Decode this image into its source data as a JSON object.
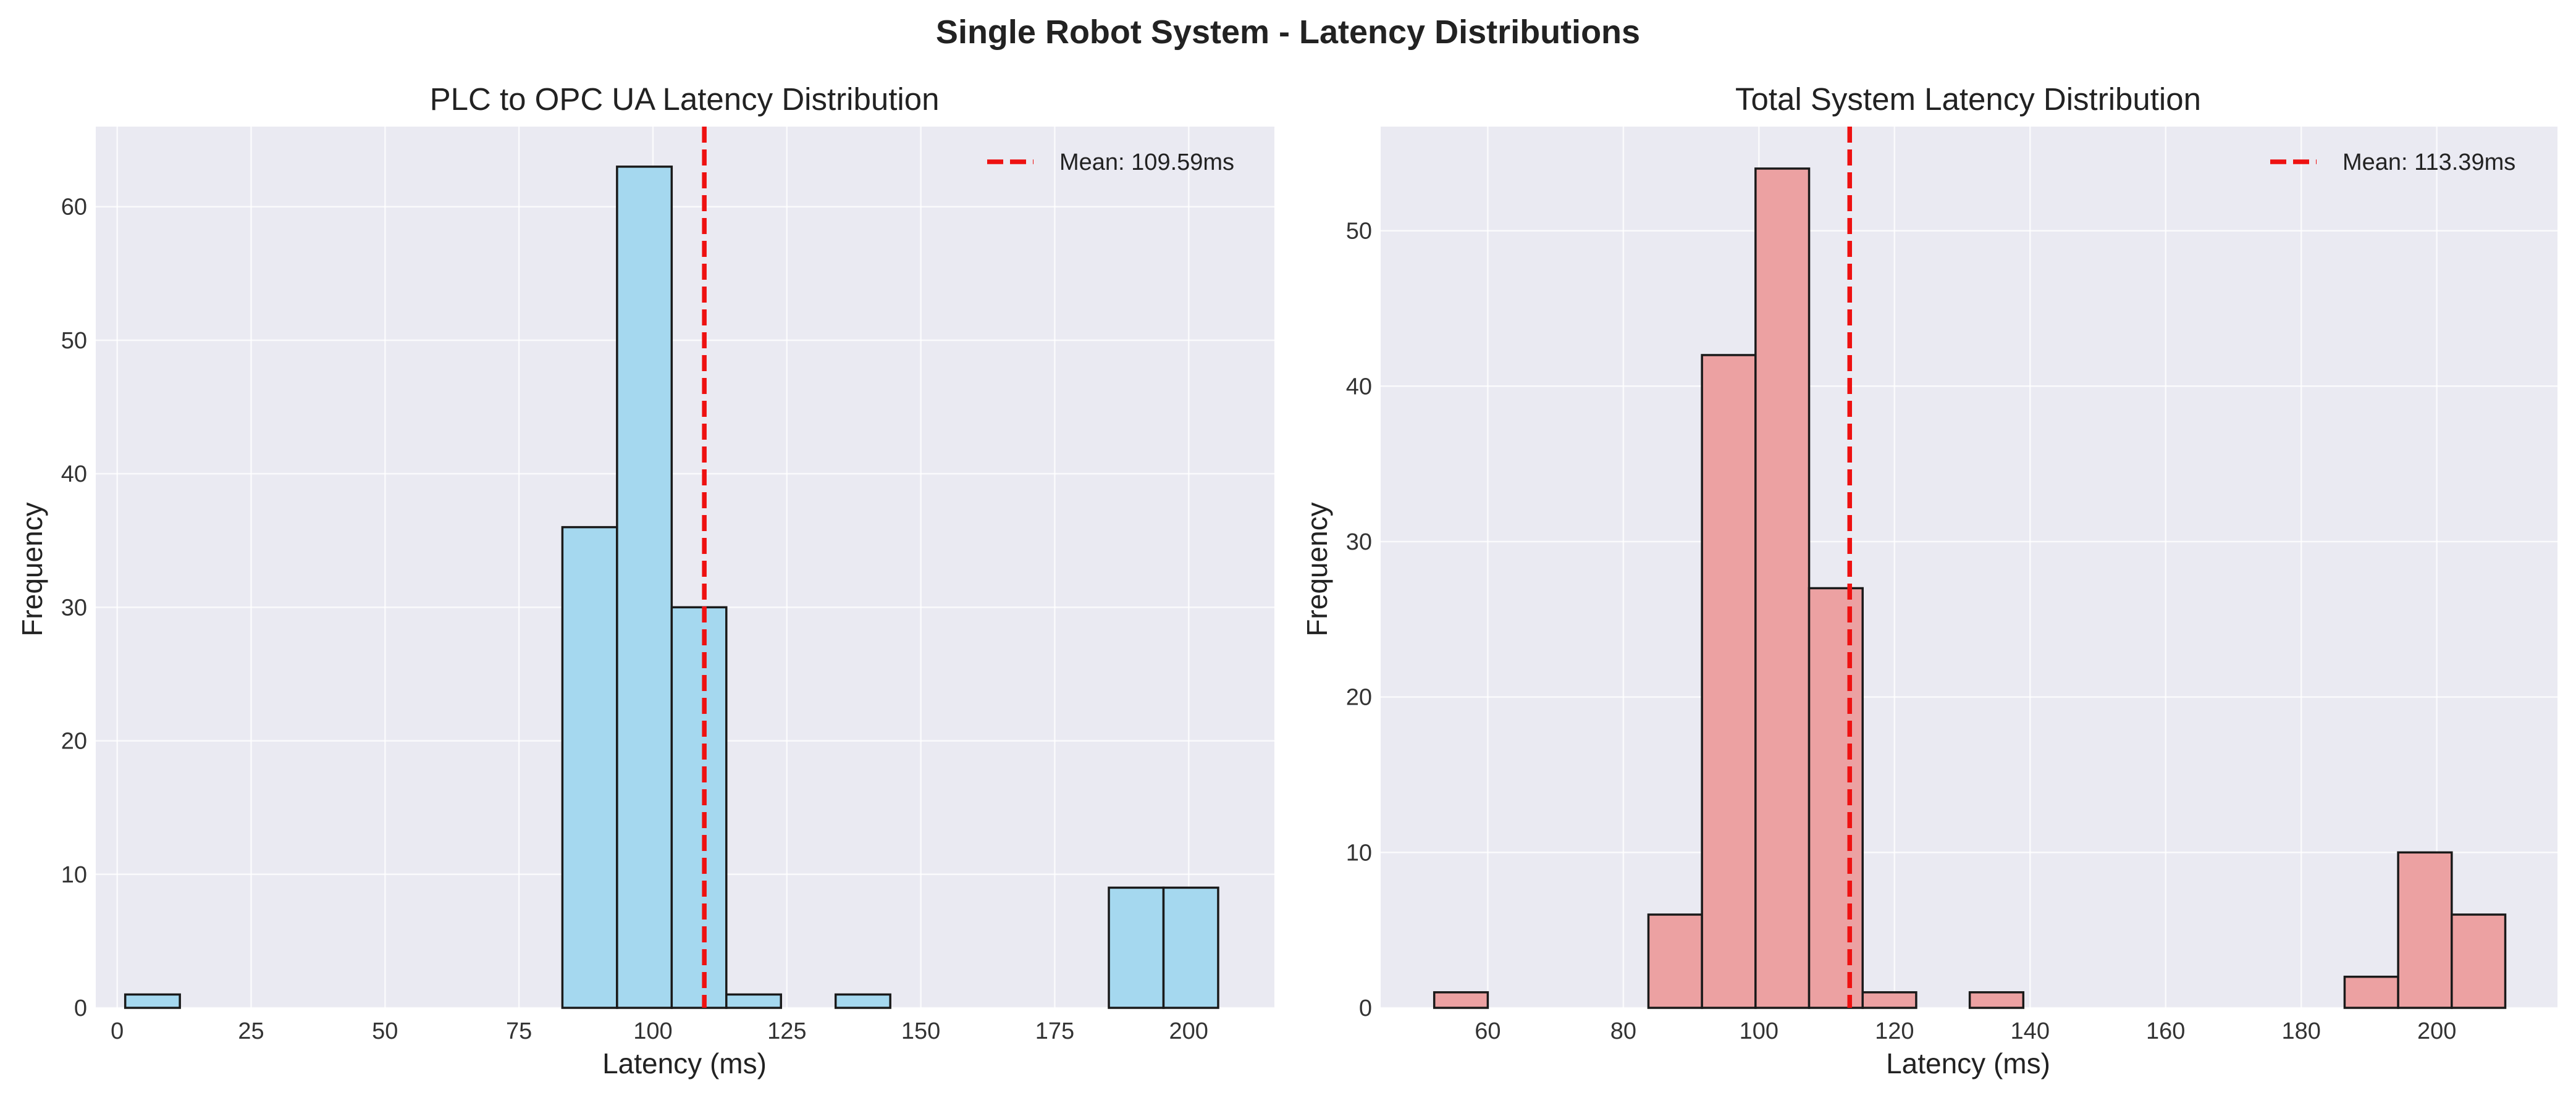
{
  "suptitle": "Single Robot System - Latency Distributions",
  "colors": {
    "plot_bg": "#eaeaf2",
    "grid": "#ffffff",
    "bar_edge": "#1a1a1a",
    "mean_line": "#ee1111",
    "left_bar": "#a5d8ef",
    "right_bar": "#eca1a2"
  },
  "chart_data": [
    {
      "type": "bar",
      "subtype": "histogram",
      "title": "PLC to OPC UA Latency Distribution",
      "xlabel": "Latency (ms)",
      "ylabel": "Frequency",
      "xlim": [
        -4,
        216
      ],
      "ylim": [
        0,
        66
      ],
      "xticks": [
        0,
        25,
        50,
        75,
        100,
        125,
        150,
        175,
        200
      ],
      "yticks": [
        0,
        10,
        20,
        30,
        40,
        50,
        60
      ],
      "grid": true,
      "legend_position": "top-right",
      "bar_color": "#a5d8ef",
      "bin_edges": [
        1.5,
        11.7,
        21.9,
        32.1,
        42.3,
        52.5,
        62.7,
        72.9,
        83.1,
        93.3,
        103.5,
        113.7,
        123.9,
        134.1,
        144.3,
        154.5,
        164.7,
        174.9,
        185.1,
        195.3,
        205.5
      ],
      "values": [
        1,
        0,
        0,
        0,
        0,
        0,
        0,
        0,
        36,
        63,
        30,
        1,
        0,
        1,
        0,
        0,
        0,
        0,
        9,
        9
      ],
      "mean": 109.59,
      "mean_label": "Mean: 109.59ms"
    },
    {
      "type": "bar",
      "subtype": "histogram",
      "title": "Total System Latency Distribution",
      "xlabel": "Latency (ms)",
      "ylabel": "Frequency",
      "xlim": [
        44.2,
        217.8
      ],
      "ylim": [
        0,
        56.7
      ],
      "xticks": [
        60,
        80,
        100,
        120,
        140,
        160,
        180,
        200
      ],
      "yticks": [
        0,
        10,
        20,
        30,
        40,
        50
      ],
      "grid": true,
      "legend_position": "top-right",
      "bar_color": "#eca1a2",
      "bin_edges": [
        52.1,
        60.0,
        67.9,
        75.8,
        83.7,
        91.6,
        99.5,
        107.4,
        115.3,
        123.2,
        131.1,
        139.0,
        146.9,
        154.8,
        162.7,
        170.6,
        178.5,
        186.4,
        194.3,
        202.2,
        210.1
      ],
      "values": [
        1,
        0,
        0,
        0,
        6,
        42,
        54,
        27,
        1,
        0,
        1,
        0,
        0,
        0,
        0,
        0,
        0,
        2,
        10,
        6
      ],
      "mean": 113.39,
      "mean_label": "Mean: 113.39ms"
    }
  ]
}
